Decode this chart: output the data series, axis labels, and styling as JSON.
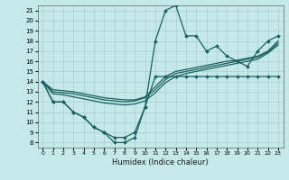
{
  "xlabel": "Humidex (Indice chaleur)",
  "xlim": [
    -0.5,
    23.5
  ],
  "ylim": [
    7.5,
    21.5
  ],
  "yticks": [
    8,
    9,
    10,
    11,
    12,
    13,
    14,
    15,
    16,
    17,
    18,
    19,
    20,
    21
  ],
  "xticks": [
    0,
    1,
    2,
    3,
    4,
    5,
    6,
    7,
    8,
    9,
    10,
    11,
    12,
    13,
    14,
    15,
    16,
    17,
    18,
    19,
    20,
    21,
    22,
    23
  ],
  "bg_color": "#c5e8e8",
  "grid_color": "#aacece",
  "line_color": "#1a6060",
  "lines": [
    {
      "x": [
        0,
        1,
        2,
        3,
        4,
        5,
        6,
        7,
        8,
        9,
        10,
        11,
        12,
        13,
        14,
        15,
        16,
        17,
        18,
        19,
        20,
        21,
        22,
        23
      ],
      "y": [
        14,
        12,
        12,
        11,
        10.5,
        9.5,
        9,
        8,
        8,
        8.5,
        11.5,
        18,
        21,
        21.5,
        18.5,
        18.5,
        17,
        17.5,
        16.5,
        16,
        15.5,
        17,
        18,
        18.5
      ],
      "marker": "D",
      "markersize": 2.0,
      "lw": 0.9
    },
    {
      "x": [
        0,
        1,
        2,
        3,
        4,
        5,
        6,
        7,
        8,
        9,
        10,
        11,
        12,
        13,
        14,
        15,
        16,
        17,
        18,
        19,
        20,
        21,
        22,
        23
      ],
      "y": [
        14,
        13.2,
        13.1,
        13.0,
        12.8,
        12.6,
        12.4,
        12.3,
        12.2,
        12.2,
        12.5,
        13.5,
        14.5,
        15.0,
        15.2,
        15.4,
        15.6,
        15.8,
        16.0,
        16.1,
        16.3,
        16.5,
        17.0,
        18.0
      ],
      "marker": null,
      "markersize": 0,
      "lw": 0.9
    },
    {
      "x": [
        0,
        1,
        2,
        3,
        4,
        5,
        6,
        7,
        8,
        9,
        10,
        11,
        12,
        13,
        14,
        15,
        16,
        17,
        18,
        19,
        20,
        21,
        22,
        23
      ],
      "y": [
        14,
        13.0,
        12.9,
        12.8,
        12.6,
        12.4,
        12.2,
        12.1,
        12.0,
        12.1,
        12.4,
        13.2,
        14.2,
        14.8,
        15.0,
        15.2,
        15.4,
        15.6,
        15.8,
        16.0,
        16.2,
        16.4,
        16.9,
        17.8
      ],
      "marker": null,
      "markersize": 0,
      "lw": 0.9
    },
    {
      "x": [
        0,
        1,
        2,
        3,
        4,
        5,
        6,
        7,
        8,
        9,
        10,
        11,
        12,
        13,
        14,
        15,
        16,
        17,
        18,
        19,
        20,
        21,
        22,
        23
      ],
      "y": [
        14,
        12.8,
        12.7,
        12.5,
        12.3,
        12.1,
        11.9,
        11.8,
        11.7,
        11.8,
        12.1,
        12.9,
        13.9,
        14.5,
        14.8,
        15.0,
        15.2,
        15.4,
        15.6,
        15.8,
        16.0,
        16.2,
        16.8,
        17.6
      ],
      "marker": null,
      "markersize": 0,
      "lw": 0.9
    },
    {
      "x": [
        0,
        1,
        2,
        3,
        4,
        5,
        6,
        7,
        8,
        9,
        10,
        11,
        12,
        13,
        14,
        15,
        16,
        17,
        18,
        19,
        20,
        21,
        22,
        23
      ],
      "y": [
        14,
        12,
        12,
        11,
        10.5,
        9.5,
        9,
        8.5,
        8.5,
        9,
        11.5,
        14.5,
        14.5,
        14.5,
        14.5,
        14.5,
        14.5,
        14.5,
        14.5,
        14.5,
        14.5,
        14.5,
        14.5,
        14.5
      ],
      "marker": "D",
      "markersize": 2.0,
      "lw": 0.9
    }
  ]
}
